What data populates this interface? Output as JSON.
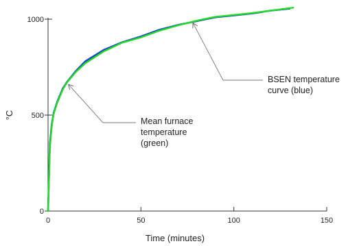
{
  "chart_data": {
    "type": "line",
    "title": "",
    "xlabel": "Time (minutes)",
    "ylabel": "°C",
    "xlim": [
      0,
      150
    ],
    "ylim": [
      0,
      1000
    ],
    "x_ticks": [
      0,
      50,
      100,
      150
    ],
    "y_ticks": [
      0,
      500,
      1000
    ],
    "grid": false,
    "series": [
      {
        "color": "#1f3fd6",
        "x": [
          0,
          1,
          2,
          3,
          5,
          8,
          10,
          15,
          20,
          30,
          40,
          50,
          60,
          70,
          80,
          90,
          100,
          110,
          120,
          130
        ],
        "y": [
          0,
          350,
          450,
          510,
          570,
          640,
          670,
          730,
          780,
          840,
          880,
          910,
          945,
          970,
          990,
          1010,
          1020,
          1030,
          1045,
          1055
        ]
      },
      {
        "color": "#22dd22",
        "x": [
          0,
          1,
          2,
          3,
          5,
          8,
          10,
          15,
          20,
          30,
          40,
          50,
          60,
          70,
          80,
          90,
          100,
          110,
          120,
          132
        ],
        "y": [
          0,
          330,
          440,
          505,
          565,
          635,
          668,
          725,
          770,
          832,
          878,
          905,
          940,
          968,
          992,
          1012,
          1022,
          1032,
          1045,
          1060
        ]
      }
    ],
    "annotations": [
      {
        "lines": [
          "BSEN temperature",
          "curve (blue)"
        ],
        "target_x": 78,
        "target_y": 980
      },
      {
        "lines": [
          "Mean furnace",
          "temperature",
          "(green)"
        ],
        "target_x": 11,
        "target_y": 660
      }
    ]
  }
}
